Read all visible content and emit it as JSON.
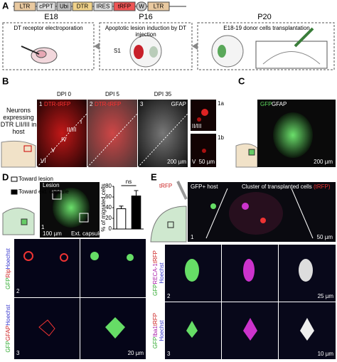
{
  "panels": {
    "a": {
      "letter": "A",
      "construct": [
        "LTR",
        "cPPT",
        "Ubi",
        "DTR",
        "IRES",
        "tRFP",
        "W",
        "LTR"
      ],
      "stages": [
        {
          "age": "E18",
          "text": "DT receptor electroporation"
        },
        {
          "age": "P16",
          "text": "Apoptotic lesion induction by DT injection"
        },
        {
          "age": "P20",
          "text": "E18-19 donor cells transplantation"
        }
      ],
      "region": "S1"
    },
    "b": {
      "letter": "B",
      "side_label": "Neurons expressing DTR LII/III in host",
      "columns": [
        "DPI 0",
        "DPI 5",
        "DPI 35"
      ],
      "stains": [
        "DTR-tRFP",
        "DTR-tRFP",
        "GFAP"
      ],
      "numbers": [
        "1",
        "2",
        "3"
      ],
      "layers": [
        "I",
        "II/III",
        "IV",
        "V",
        "VI"
      ],
      "insets": [
        {
          "number": "1a",
          "layer": "II/III"
        },
        {
          "number": "1b",
          "layer": "V"
        }
      ],
      "scale_main": "200 µm",
      "scale_inset": "50 µm"
    },
    "c": {
      "letter": "C",
      "stains": [
        "GFP",
        "GFAP"
      ],
      "scale": "200 µm"
    },
    "d": {
      "letter": "D",
      "image_labels": [
        "Lesion",
        "Ext. capsule"
      ],
      "scale_top": "100 µm",
      "number_top": "1",
      "rows": [
        {
          "number": "2",
          "stains": [
            "GFP",
            "Rip",
            "Hoechst"
          ]
        },
        {
          "number": "3",
          "stains": [
            "GFP",
            "GFAP",
            "Hoechst"
          ]
        }
      ],
      "scale_bottom": "20 µm"
    },
    "e": {
      "letter": "E",
      "reporter": "tRFP",
      "host_label": "GFP+ host",
      "cluster_label": "Cluster of transplanted cells",
      "cluster_stain": "(tRFP)",
      "number_top": "1",
      "scale_top": "50 µm",
      "rows": [
        {
          "number": "2",
          "stains": [
            "GFP",
            "RECA-1",
            "tRFP",
            "Hoechst"
          ],
          "scale": "25 µm"
        },
        {
          "number": "3",
          "stains": [
            "GFP",
            "Iba1",
            "tRFP",
            "Hoechst"
          ],
          "scale": "10 µm"
        }
      ]
    }
  },
  "chart_data": {
    "type": "bar",
    "ylabel": "% of migrated cells",
    "annotation": "ns",
    "series": [
      {
        "name": "Toward lesion",
        "color": "#ffffff",
        "values": [
          38
        ],
        "errors": [
          5
        ]
      },
      {
        "name": "Toward ext. capsule",
        "color": "#000000",
        "values": [
          62
        ],
        "errors": [
          10
        ]
      }
    ],
    "ylim": [
      0,
      80
    ],
    "yticks": [
      0,
      20,
      40,
      60,
      80
    ]
  }
}
